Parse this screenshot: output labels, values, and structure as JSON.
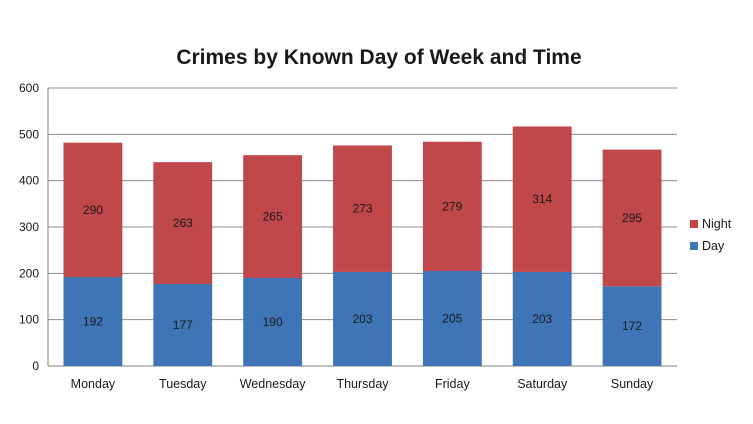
{
  "chart_data": {
    "type": "bar",
    "stacked": true,
    "title": "Crimes by Known Day of Week and Time",
    "xlabel": "",
    "ylabel": "",
    "ylim": [
      0,
      600
    ],
    "yticks": [
      0,
      100,
      200,
      300,
      400,
      500,
      600
    ],
    "grid": true,
    "legend_position": "right",
    "categories": [
      "Monday",
      "Tuesday",
      "Wednesday",
      "Thursday",
      "Friday",
      "Saturday",
      "Sunday"
    ],
    "series": [
      {
        "name": "Day",
        "color": "#3f75b7",
        "values": [
          192,
          177,
          190,
          203,
          205,
          203,
          172
        ]
      },
      {
        "name": "Night",
        "color": "#c0474a",
        "values": [
          290,
          263,
          265,
          273,
          279,
          314,
          295
        ]
      }
    ],
    "legend_order": [
      "Night",
      "Day"
    ]
  }
}
